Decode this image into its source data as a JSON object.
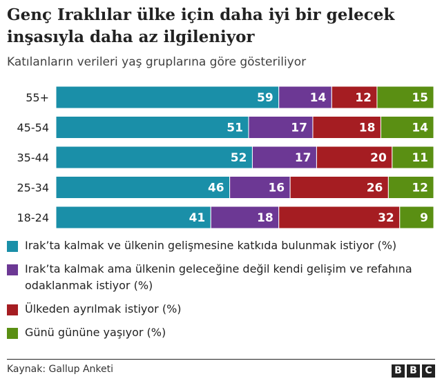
{
  "title": "Genç Iraklılar ülke için daha iyi bir gelecek inşasıyla daha az ilgileniyor",
  "subtitle": "Katılanların verileri yaş gruplarına göre gösteriliyor",
  "chart_data": {
    "type": "bar",
    "orientation": "horizontal",
    "stacked": true,
    "categories": [
      "55+",
      "45-54",
      "35-44",
      "25-34",
      "18-24"
    ],
    "series": [
      {
        "name": "Irak’ta kalmak ve ülkenin gelişmesine katkıda bulunmak istiyor (%)",
        "color": "#1a8fa8",
        "values": [
          59,
          51,
          52,
          46,
          41
        ]
      },
      {
        "name": "Irak’ta kalmak ama ülkenin geleceğine değil kendi gelişim ve refahına odaklanmak istiyor (%)",
        "color": "#6c3894",
        "values": [
          14,
          17,
          17,
          16,
          18
        ]
      },
      {
        "name": "Ülkeden ayrılmak istiyor (%)",
        "color": "#a51d22",
        "values": [
          12,
          18,
          20,
          26,
          32
        ]
      },
      {
        "name": "Günü gününe yaşıyor (%)",
        "color": "#5a8f13",
        "values": [
          15,
          14,
          11,
          12,
          9
        ]
      }
    ],
    "grid": false,
    "legend_position": "bottom"
  },
  "source": "Kaynak: Gallup Anketi",
  "logo": [
    "B",
    "B",
    "C"
  ]
}
